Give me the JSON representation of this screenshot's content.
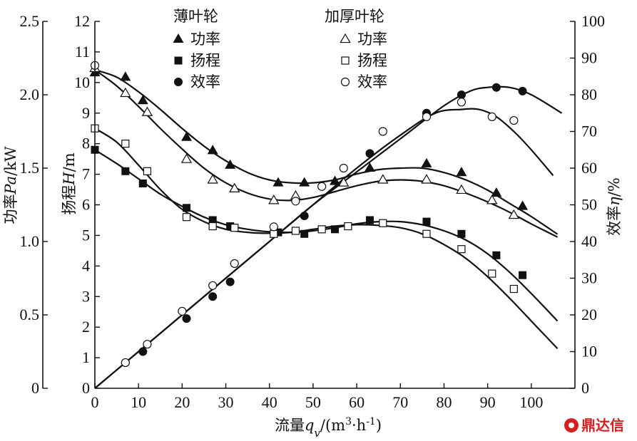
{
  "chart_data": {
    "type": "scatter",
    "xlabel": "流量q_v/(m³·h⁻¹)",
    "ylabel_left_outer": "功率Pa/kW",
    "ylabel_left_inner": "扬程H/m",
    "ylabel_right": "效率η/%",
    "xlim": [
      0,
      110
    ],
    "x_ticks": [
      0,
      10,
      20,
      30,
      40,
      50,
      60,
      70,
      80,
      90,
      100
    ],
    "axes": {
      "power": {
        "lim": [
          0,
          2.5
        ],
        "ticks": [
          0,
          0.5,
          1.0,
          1.5,
          2.0,
          2.5
        ],
        "tick_labels": [
          "0",
          "0.5",
          "1.0",
          "1.5",
          "2.0",
          "2.5"
        ]
      },
      "head": {
        "lim": [
          0,
          12
        ],
        "ticks": [
          0,
          1,
          2,
          3,
          4,
          5,
          6,
          7,
          8,
          9,
          10,
          11,
          12
        ]
      },
      "efficiency": {
        "lim": [
          0,
          100
        ],
        "ticks": [
          0,
          10,
          20,
          30,
          40,
          50,
          60,
          70,
          80,
          90,
          100
        ]
      }
    },
    "legend": {
      "groups": [
        {
          "title": "薄叶轮",
          "entries": [
            "功率",
            "扬程",
            "效率"
          ],
          "filled": true
        },
        {
          "title": "加厚叶轮",
          "entries": [
            "功率",
            "扬程",
            "效率"
          ],
          "filled": false
        }
      ]
    },
    "series": [
      {
        "group": "薄叶轮",
        "name": "功率",
        "axis": "power",
        "marker": "triangle",
        "filled": true,
        "x": [
          0,
          7,
          11,
          21,
          27,
          31,
          42,
          48,
          55,
          63,
          76,
          84,
          92,
          98
        ],
        "y": [
          2.15,
          2.12,
          1.96,
          1.71,
          1.62,
          1.52,
          1.4,
          1.4,
          1.41,
          1.5,
          1.53,
          1.47,
          1.33,
          1.24
        ]
      },
      {
        "group": "薄叶轮",
        "name": "扬程",
        "axis": "head",
        "marker": "square",
        "filled": true,
        "x": [
          0,
          7,
          11,
          21,
          27,
          31,
          42,
          48,
          55,
          63,
          76,
          84,
          92,
          98
        ],
        "y": [
          7.8,
          7.1,
          6.7,
          5.9,
          5.5,
          5.3,
          5.1,
          5.05,
          5.2,
          5.5,
          5.45,
          5.05,
          4.35,
          3.7
        ]
      },
      {
        "group": "薄叶轮",
        "name": "效率",
        "axis": "efficiency",
        "marker": "circle",
        "filled": true,
        "x": [
          7,
          11,
          21,
          27,
          31,
          48,
          63,
          76,
          84,
          92,
          98
        ],
        "y": [
          7,
          10,
          19,
          25,
          29,
          47,
          64,
          75,
          80,
          82,
          81
        ]
      },
      {
        "group": "加厚叶轮",
        "name": "功率",
        "axis": "power",
        "marker": "triangle",
        "filled": false,
        "x": [
          0,
          7,
          12,
          21,
          27,
          32,
          41,
          46,
          57,
          66,
          76,
          84,
          91,
          96
        ],
        "y": [
          2.18,
          2.01,
          1.88,
          1.56,
          1.42,
          1.36,
          1.28,
          1.31,
          1.4,
          1.42,
          1.42,
          1.35,
          1.28,
          1.18
        ]
      },
      {
        "group": "加厚叶轮",
        "name": "扬程",
        "axis": "head",
        "marker": "square",
        "filled": false,
        "x": [
          0,
          7,
          12,
          21,
          27,
          32,
          41,
          46,
          52,
          58,
          66,
          76,
          84,
          91,
          96
        ],
        "y": [
          8.5,
          8.0,
          7.1,
          5.6,
          5.3,
          5.25,
          5.05,
          5.15,
          5.2,
          5.3,
          5.4,
          5.05,
          4.55,
          3.75,
          3.25
        ]
      },
      {
        "group": "加厚叶轮",
        "name": "效率",
        "axis": "efficiency",
        "marker": "circle",
        "filled": false,
        "x": [
          0,
          7,
          12,
          20,
          27,
          32,
          41,
          46,
          52,
          57,
          66,
          76,
          84,
          91,
          96
        ],
        "y": [
          88,
          7,
          12,
          21,
          28,
          34,
          44,
          51,
          55,
          60,
          70,
          74,
          78,
          74,
          73
        ]
      }
    ],
    "curves": [
      {
        "axis": "power",
        "x": [
          0,
          5,
          10,
          15,
          20,
          25,
          30,
          35,
          40,
          45,
          50,
          55,
          60,
          65,
          70,
          75,
          80,
          85,
          90,
          95,
          100,
          106
        ],
        "y": [
          2.17,
          2.12,
          2.02,
          1.9,
          1.77,
          1.65,
          1.55,
          1.47,
          1.42,
          1.4,
          1.4,
          1.42,
          1.46,
          1.49,
          1.5,
          1.5,
          1.47,
          1.42,
          1.35,
          1.26,
          1.17,
          1.05
        ]
      },
      {
        "axis": "power",
        "x": [
          0,
          5,
          10,
          15,
          20,
          25,
          30,
          35,
          40,
          45,
          50,
          55,
          60,
          65,
          70,
          75,
          80,
          85,
          90,
          95,
          100,
          106
        ],
        "y": [
          2.17,
          2.06,
          1.92,
          1.77,
          1.63,
          1.5,
          1.4,
          1.33,
          1.29,
          1.28,
          1.3,
          1.34,
          1.38,
          1.41,
          1.42,
          1.41,
          1.38,
          1.33,
          1.27,
          1.2,
          1.12,
          1.03
        ]
      },
      {
        "axis": "head",
        "x": [
          0,
          5,
          10,
          15,
          20,
          25,
          30,
          35,
          40,
          45,
          50,
          55,
          60,
          65,
          70,
          75,
          80,
          85,
          90,
          95,
          100,
          106
        ],
        "y": [
          7.8,
          7.35,
          6.85,
          6.35,
          5.95,
          5.6,
          5.35,
          5.2,
          5.12,
          5.1,
          5.15,
          5.25,
          5.38,
          5.45,
          5.45,
          5.35,
          5.15,
          4.85,
          4.4,
          3.8,
          3.1,
          2.2
        ]
      },
      {
        "axis": "head",
        "x": [
          0,
          5,
          10,
          15,
          20,
          25,
          30,
          35,
          40,
          45,
          50,
          55,
          60,
          65,
          70,
          75,
          80,
          85,
          90,
          95,
          100,
          106
        ],
        "y": [
          8.5,
          8.05,
          7.3,
          6.5,
          5.85,
          5.45,
          5.2,
          5.1,
          5.07,
          5.1,
          5.2,
          5.3,
          5.35,
          5.33,
          5.25,
          5.05,
          4.7,
          4.25,
          3.65,
          2.95,
          2.2,
          1.3
        ]
      },
      {
        "axis": "efficiency",
        "x": [
          0,
          10,
          20,
          30,
          40,
          50,
          60,
          70,
          80,
          86,
          90,
          95,
          100,
          107
        ],
        "y": [
          0,
          10,
          20,
          30,
          40,
          50,
          59,
          68,
          77,
          81,
          82,
          82,
          80,
          75
        ]
      },
      {
        "axis": "efficiency",
        "x": [
          0,
          10,
          20,
          30,
          40,
          50,
          60,
          70,
          78,
          84,
          88,
          92,
          96,
          100,
          105
        ],
        "y": [
          0,
          10,
          20,
          30,
          40,
          50,
          60,
          69,
          75,
          76,
          76,
          74,
          70,
          65,
          58
        ]
      }
    ]
  },
  "watermark": {
    "text": "鼎达信"
  },
  "colors": {
    "ink": "#111111",
    "watermark": "#d42020"
  }
}
